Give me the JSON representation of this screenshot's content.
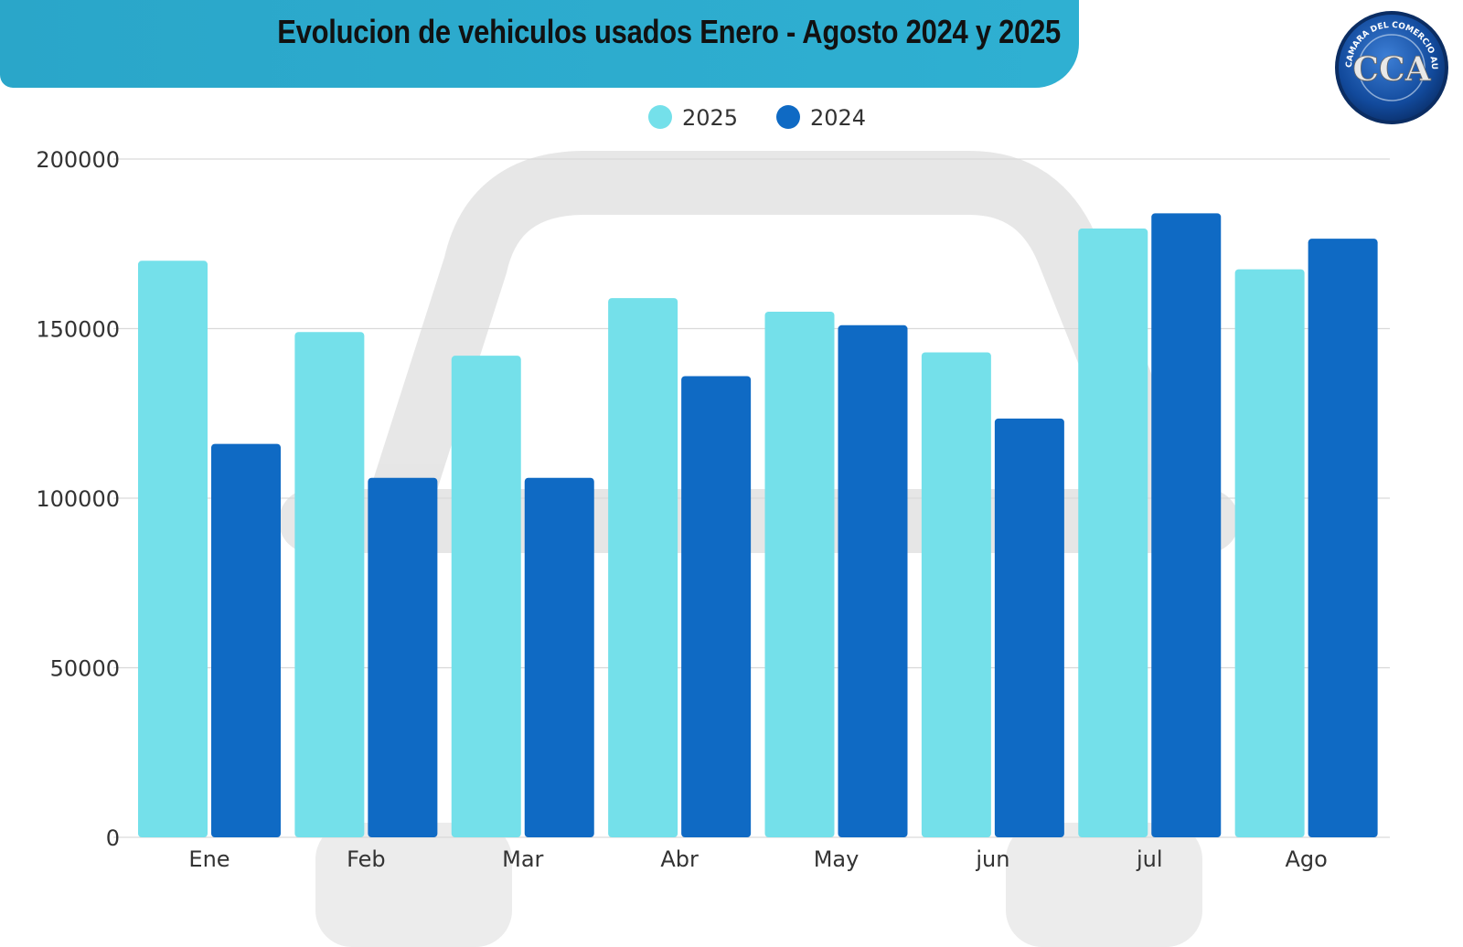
{
  "header": {
    "title": "Evolucion de vehiculos usados Enero - Agosto 2024 y 2025"
  },
  "logo": {
    "initials": "CCA",
    "ring_text": "CAMARA DEL COMERCIO AUTOMOTOR",
    "icon": "cca-logo-icon"
  },
  "colors": {
    "series_2025": "#74e0ea",
    "series_2024": "#0f6ac4",
    "banner": "#2aa6c9",
    "gridline": "#d9d9d9"
  },
  "chart_data": {
    "type": "bar",
    "title": "Evolucion de vehiculos usados Enero - Agosto 2024 y 2025",
    "xlabel": "",
    "ylabel": "",
    "categories": [
      "Ene",
      "Feb",
      "Mar",
      "Abr",
      "May",
      "jun",
      "jul",
      "Ago"
    ],
    "series": [
      {
        "name": "2025",
        "values": [
          170000,
          149000,
          142000,
          159000,
          155000,
          143000,
          179500,
          167500
        ]
      },
      {
        "name": "2024",
        "values": [
          116000,
          106000,
          106000,
          136000,
          151000,
          123500,
          184000,
          176500
        ]
      }
    ],
    "ylim": [
      0,
      200000
    ],
    "yticks": [
      "200000",
      "150000",
      "100000",
      "50000",
      "0"
    ],
    "ytick_values": [
      200000,
      150000,
      100000,
      50000,
      0
    ],
    "legend": {
      "placement": "top-center",
      "entries": [
        "2025",
        "2024"
      ]
    },
    "grid": true
  }
}
